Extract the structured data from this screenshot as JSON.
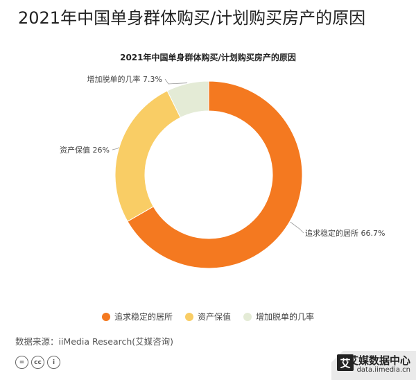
{
  "page": {
    "title": "2021年中国单身群体购买/计划购买房产的原因",
    "source": "数据来源：iiMedia Research(艾媒咨询)",
    "brand_name": "艾媒数据中心",
    "brand_url": "data.iimedia.cn",
    "brand_logo_char": "艾"
  },
  "chart_data": {
    "type": "pie",
    "variant": "donut",
    "title": "2021年中国单身群体购买/计划购买房产的原因",
    "slices": [
      {
        "label": "追求稳定的居所",
        "value": 66.7,
        "display": "66.7%",
        "color": "#f47920"
      },
      {
        "label": "资产保值",
        "value": 26,
        "display": "26%",
        "color": "#f9cd65"
      },
      {
        "label": "增加脱单的几率",
        "value": 7.3,
        "display": "7.3%",
        "color": "#e4ebd6"
      }
    ],
    "legend_position": "bottom"
  },
  "license_icons": [
    "=",
    "cc",
    "i"
  ]
}
